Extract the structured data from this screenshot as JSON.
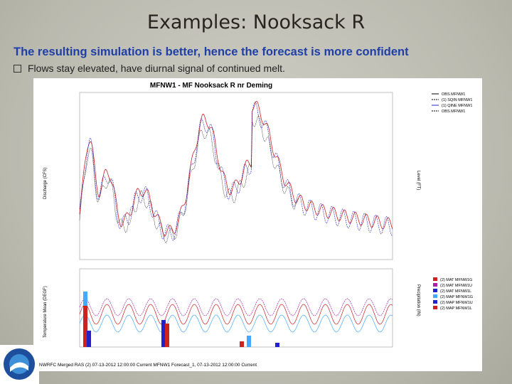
{
  "header": {
    "title": "Examples:  Nooksack R"
  },
  "subtitle": "The resulting simulation is better, hence the forecast is more confident",
  "bullets": [
    "Flows stay elevated, have diurnal signal of continued melt."
  ],
  "figure": {
    "title": "MFNW1 - MF Nooksack R nr Deming",
    "left_axis_label": "Discharge (CFS)",
    "right_axis_label": "Level (FT)",
    "lower_left_axis_label": "Temperature Mean (DEGF)",
    "lower_right_axis_label": "Precipitation (IN)",
    "upper_legend": [
      "OBS MFNW1",
      "(1) SQIN MFNW1",
      "(1) QINE MFNW1",
      "OBS MFNW1"
    ],
    "lower_legend": [
      "(2) MAT MFNW1G",
      "(2) MAT MFNW1U",
      "(2) MAT MFNW1L",
      "(2) MAP MFNW1G",
      "(2) MAP MFNW1U",
      "(2) MAP MFNW1L"
    ],
    "footer": "NWRFC Merged RAS (2) 07-13-2012 12:00:00 Current  MFNW1 Forecast_1, 07-13-2012 12:00:00 Current"
  }
}
